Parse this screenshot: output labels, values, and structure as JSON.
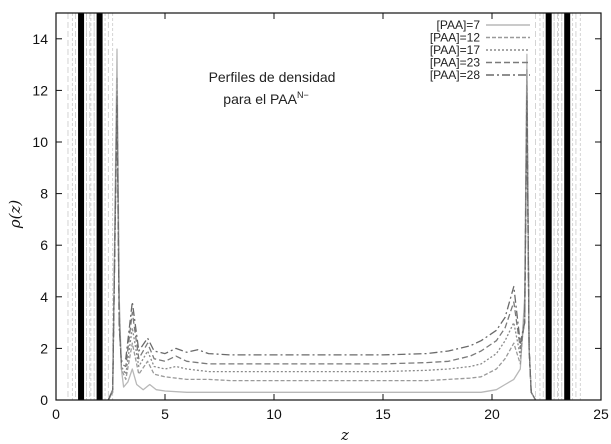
{
  "chart_data": {
    "type": "line",
    "xlabel": "z",
    "ylabel": "ρ(z)",
    "xlim": [
      0,
      25
    ],
    "ylim": [
      0,
      15
    ],
    "xticks": [
      "0",
      "5",
      "10",
      "15",
      "20",
      "25"
    ],
    "yticks": [
      "0",
      "2",
      "4",
      "6",
      "8",
      "10",
      "12",
      "14"
    ],
    "annotation": {
      "line1": "Perfiles de densidad",
      "line2_main": "para el PAA",
      "line2_sup": "N−"
    },
    "wall_lines_x": [
      1.15,
      2.0,
      22.6,
      23.45
    ],
    "grid": false,
    "legend_position": "top-right",
    "series": [
      {
        "name": "[PAA]=7",
        "color": "#b8b8b8",
        "dash": "",
        "x": [
          2.4,
          2.6,
          2.8,
          2.9,
          3.0,
          3.1,
          3.3,
          3.5,
          3.7,
          4.0,
          4.3,
          4.6,
          5.0,
          6.0,
          8.0,
          10.0,
          12.5,
          15.0,
          17.0,
          18.5,
          19.5,
          20.2,
          20.6,
          21.0,
          21.3,
          21.5,
          21.6,
          21.7,
          21.8,
          22.0
        ],
        "y": [
          0.0,
          0.3,
          13.6,
          4.0,
          1.2,
          0.5,
          0.7,
          1.2,
          0.6,
          0.4,
          0.6,
          0.4,
          0.35,
          0.3,
          0.3,
          0.3,
          0.3,
          0.3,
          0.3,
          0.3,
          0.3,
          0.4,
          0.6,
          0.8,
          1.2,
          4.0,
          13.4,
          2.0,
          0.3,
          0.0
        ]
      },
      {
        "name": "[PAA]=12",
        "color": "#9a9a9a",
        "dash": "4,2",
        "x": [
          2.4,
          2.6,
          2.8,
          2.9,
          3.0,
          3.2,
          3.5,
          3.8,
          4.2,
          4.5,
          5.0,
          6.0,
          7.0,
          8.0,
          10.0,
          12.5,
          15.0,
          17.0,
          18.0,
          19.0,
          19.5,
          20.2,
          20.6,
          21.0,
          21.3,
          21.5,
          21.6,
          21.7,
          21.8,
          22.0
        ],
        "y": [
          0.0,
          0.3,
          12.5,
          3.5,
          1.2,
          0.8,
          2.2,
          1.0,
          1.5,
          1.0,
          0.9,
          0.8,
          0.8,
          0.75,
          0.75,
          0.75,
          0.75,
          0.75,
          0.8,
          0.85,
          0.9,
          1.2,
          1.6,
          2.2,
          1.4,
          3.5,
          12.8,
          2.0,
          0.3,
          0.0
        ]
      },
      {
        "name": "[PAA]=17",
        "color": "#8a8a8a",
        "dash": "2,2",
        "x": [
          2.4,
          2.6,
          2.8,
          2.9,
          3.0,
          3.2,
          3.5,
          3.8,
          4.2,
          4.5,
          5.0,
          5.5,
          6.0,
          7.0,
          8.0,
          10.0,
          12.5,
          15.0,
          17.0,
          18.0,
          19.0,
          19.5,
          20.2,
          20.6,
          21.0,
          21.3,
          21.5,
          21.6,
          21.7,
          21.8,
          22.0
        ],
        "y": [
          0.0,
          0.4,
          12.0,
          3.2,
          1.3,
          1.0,
          2.8,
          1.3,
          1.9,
          1.3,
          1.2,
          1.3,
          1.2,
          1.1,
          1.1,
          1.1,
          1.1,
          1.1,
          1.15,
          1.2,
          1.3,
          1.4,
          1.8,
          2.3,
          3.0,
          1.7,
          3.2,
          12.2,
          2.0,
          0.3,
          0.0
        ]
      },
      {
        "name": "[PAA]=23",
        "color": "#7a7a7a",
        "dash": "6,3",
        "x": [
          2.4,
          2.6,
          2.8,
          2.9,
          3.0,
          3.2,
          3.5,
          3.8,
          4.2,
          4.5,
          5.0,
          5.5,
          6.0,
          7.0,
          8.0,
          10.0,
          12.5,
          15.0,
          17.0,
          18.0,
          19.0,
          19.5,
          20.2,
          20.6,
          21.0,
          21.3,
          21.5,
          21.6,
          21.7,
          21.8,
          22.0
        ],
        "y": [
          0.0,
          0.4,
          11.8,
          3.0,
          1.4,
          1.3,
          3.4,
          1.6,
          2.2,
          1.6,
          1.5,
          1.7,
          1.5,
          1.4,
          1.4,
          1.4,
          1.4,
          1.4,
          1.45,
          1.5,
          1.7,
          1.9,
          2.3,
          2.8,
          3.8,
          2.0,
          3.0,
          11.8,
          2.0,
          0.3,
          0.0
        ]
      },
      {
        "name": "[PAA]=28",
        "color": "#6a6a6a",
        "dash": "8,3,2,3",
        "x": [
          2.4,
          2.6,
          2.8,
          2.9,
          3.0,
          3.2,
          3.5,
          3.8,
          4.2,
          4.5,
          5.0,
          5.5,
          6.0,
          6.5,
          7.0,
          8.0,
          10.0,
          12.5,
          15.0,
          17.0,
          18.0,
          18.5,
          19.0,
          19.5,
          20.2,
          20.6,
          21.0,
          21.3,
          21.5,
          21.6,
          21.7,
          21.8,
          22.0
        ],
        "y": [
          0.0,
          0.4,
          11.5,
          2.8,
          1.5,
          1.6,
          3.8,
          1.9,
          2.4,
          1.9,
          1.8,
          2.0,
          1.85,
          1.95,
          1.8,
          1.75,
          1.75,
          1.75,
          1.75,
          1.8,
          1.9,
          2.0,
          2.1,
          2.3,
          2.7,
          3.2,
          4.4,
          2.2,
          3.0,
          11.6,
          2.0,
          0.3,
          0.0
        ]
      }
    ]
  }
}
